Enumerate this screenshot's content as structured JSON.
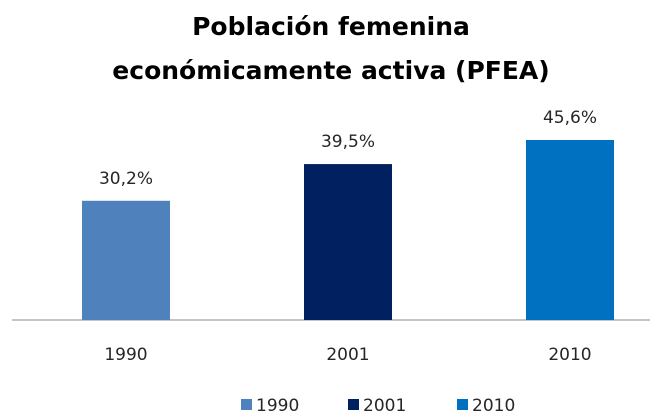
{
  "chart_data": {
    "type": "bar",
    "title": [
      "Población femenina",
      "económicamente activa (PFEA)"
    ],
    "categories": [
      "1990",
      "2001",
      "2010"
    ],
    "values": [
      30.2,
      39.5,
      45.6
    ],
    "value_labels": [
      "30,2%",
      "39,5%",
      "45,6%"
    ],
    "colors": [
      "#4f81bd",
      "#002060",
      "#0070c0"
    ],
    "legend": "bottom"
  }
}
